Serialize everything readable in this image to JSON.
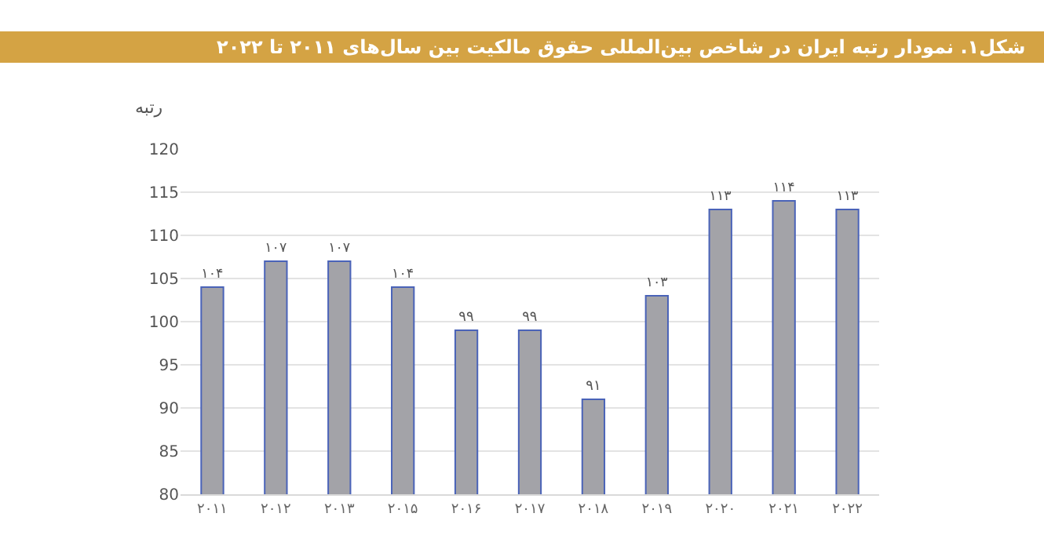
{
  "chart_data": {
    "type": "bar",
    "title": "شکل۱. نمودار رتبه ایران در شاخص بین‌المللی حقوق مالکیت بین سال‌های ۲۰۱۱ تا ۲۰۲۲",
    "ylabel": "رتبه",
    "categories": [
      "۲۰۱۱",
      "۲۰۱۲",
      "۲۰۱۳",
      "۲۰۱۵",
      "۲۰۱۶",
      "۲۰۱۷",
      "۲۰۱۸",
      "۲۰۱۹",
      "۲۰۲۰",
      "۲۰۲۱",
      "۲۰۲۲"
    ],
    "values": [
      104,
      107,
      107,
      104,
      99,
      99,
      91,
      103,
      113,
      114,
      113
    ],
    "value_labels": [
      "۱۰۴",
      "۱۰۷",
      "۱۰۷",
      "۱۰۴",
      "۹۹",
      "۹۹",
      "۹۱",
      "۱۰۳",
      "۱۱۳",
      "۱۱۴",
      "۱۱۳"
    ],
    "color": "#a3a3a8",
    "ylim": [
      80,
      120
    ],
    "yticks": [
      80,
      85,
      90,
      95,
      100,
      105,
      110,
      115,
      120
    ],
    "grid": "y"
  }
}
